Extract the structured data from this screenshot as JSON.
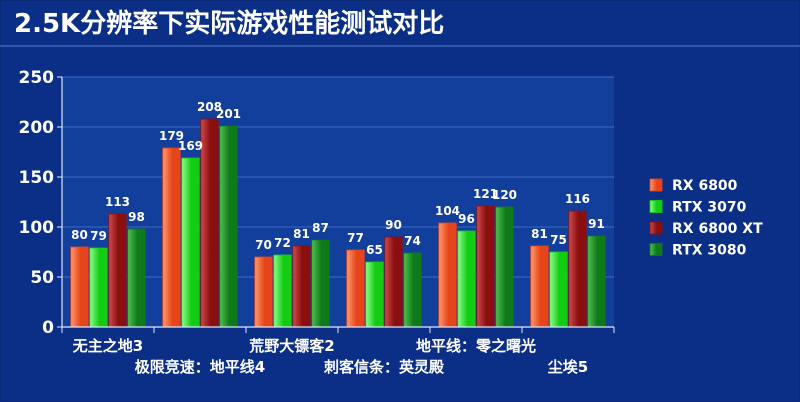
{
  "chart_data": {
    "type": "bar",
    "title": "2.5K分辨率下实际游戏性能测试对比",
    "categories": [
      "无主之地3",
      "极限竞速：地平线4",
      "荒野大镖客2",
      "刺客信条：英灵殿",
      "地平线：零之曙光",
      "尘埃5"
    ],
    "series": [
      {
        "name": "RX 6800",
        "values": [
          80,
          179,
          70,
          77,
          104,
          81
        ]
      },
      {
        "name": "RTX 3070",
        "values": [
          79,
          169,
          72,
          65,
          96,
          75
        ]
      },
      {
        "name": "RX 6800 XT",
        "values": [
          113,
          208,
          81,
          90,
          121,
          116
        ]
      },
      {
        "name": "RTX 3080",
        "values": [
          98,
          201,
          87,
          74,
          120,
          91
        ]
      }
    ],
    "ylim": [
      0,
      250
    ],
    "yticks": [
      0,
      50,
      100,
      150,
      200,
      250
    ],
    "grid": true,
    "legend_position": "right"
  },
  "colors": {
    "background": "#0b2f86",
    "plot_area": "#123e9c",
    "grid": "#3d68c2",
    "series": [
      "#e6451c",
      "#14cc14",
      "#8a1010",
      "#0f7a1a"
    ],
    "series_highlight": [
      "#ff9a6a",
      "#8cff8c",
      "#d04a4a",
      "#4fc24f"
    ]
  }
}
